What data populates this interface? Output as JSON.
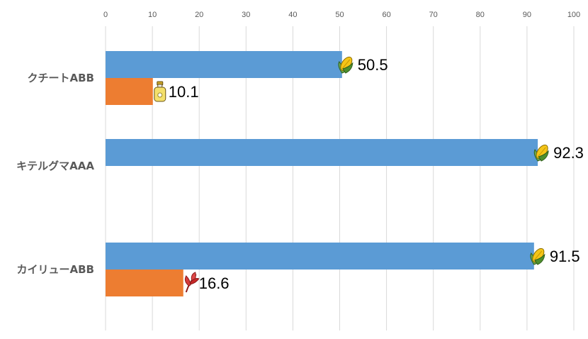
{
  "chart_data": {
    "type": "bar",
    "orientation": "horizontal",
    "xlim": [
      0,
      100
    ],
    "xticks": [
      0,
      10,
      20,
      30,
      40,
      50,
      60,
      70,
      80,
      90,
      100
    ],
    "grid": true,
    "legend": "none",
    "title": "",
    "xlabel": "",
    "ylabel": "",
    "categories": [
      "クチートABB",
      "キテルグマAAA",
      "カイリューABB"
    ],
    "series": [
      {
        "name": "series-1",
        "color": "#5B9BD5",
        "values": [
          50.5,
          92.3,
          91.5
        ],
        "labels": [
          "50.5",
          "92.3",
          "91.5"
        ],
        "icons": [
          "corn-icon",
          "corn-icon",
          "corn-icon"
        ]
      },
      {
        "name": "series-2",
        "color": "#ED7D31",
        "values": [
          10.1,
          null,
          16.6
        ],
        "labels": [
          "10.1",
          null,
          "16.6"
        ],
        "icons": [
          "oil-bottle-icon",
          null,
          "red-leaf-icon"
        ]
      }
    ]
  }
}
